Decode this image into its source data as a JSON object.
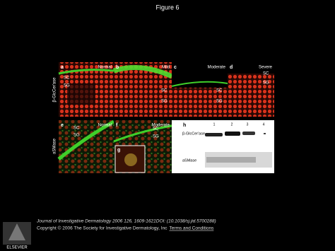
{
  "header": {
    "title": "Figure 6"
  },
  "figure": {
    "row_labels": [
      "β-GlcCer'ase",
      "aSMase"
    ],
    "panels": [
      {
        "letter": "a",
        "label": "Normal",
        "annotations": [
          "SC",
          "SG"
        ]
      },
      {
        "letter": "b",
        "label": "Mild",
        "annotations": [
          "SC",
          "SG"
        ]
      },
      {
        "letter": "c",
        "label": "Moderate",
        "annotations": [
          "SC",
          "SG"
        ]
      },
      {
        "letter": "d",
        "label": "Severe",
        "annotations": [
          "SC",
          "SG"
        ]
      },
      {
        "letter": "e",
        "label": "Normal",
        "annotations": [
          "SC",
          "SG"
        ]
      },
      {
        "letter": "f",
        "label": "Moderate",
        "annotations": [
          "SC",
          "SG"
        ]
      },
      {
        "letter": "g"
      }
    ],
    "blot": {
      "letter": "h",
      "lanes": [
        "1",
        "2",
        "3",
        "4"
      ],
      "labels": [
        "β-GlcCer'ase",
        "aSMase"
      ]
    }
  },
  "footer": {
    "journal": "Journal of Investigative Dermatology 2006 126, 1609-1621DOI: (10.1038/sj.jid.5700288)",
    "copyright": "Copyright © 2006 The Society for Investigative Dermatology, Inc",
    "link": "Terms and Conditions",
    "logo": "ELSEVIER"
  }
}
